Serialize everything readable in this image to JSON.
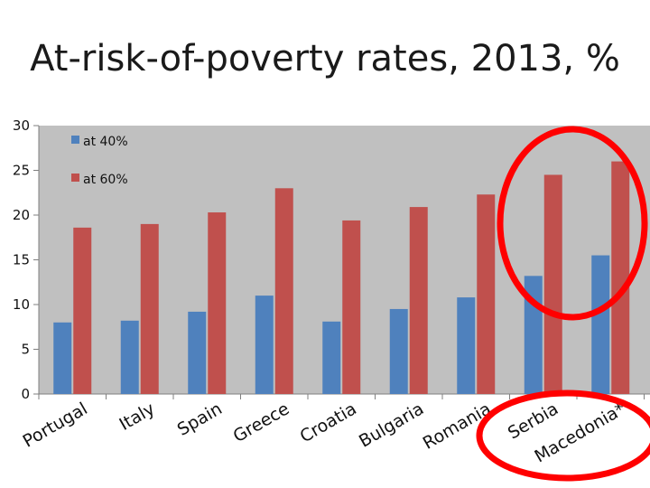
{
  "title": "At-risk-of-poverty rates, 2013, %",
  "chart_data": {
    "type": "bar",
    "title": "At-risk-of-poverty rates, 2013, %",
    "categories": [
      "Portugal",
      "Italy",
      "Spain",
      "Greece",
      "Croatia",
      "Bulgaria",
      "Romania",
      "Serbia",
      "Macedonia*"
    ],
    "series": [
      {
        "name": "at 40%",
        "color": "#4f81bd",
        "values": [
          8.0,
          8.2,
          9.2,
          11.0,
          8.1,
          9.5,
          10.8,
          13.2,
          15.5
        ]
      },
      {
        "name": "at 60%",
        "color": "#c0504d",
        "values": [
          18.6,
          19.0,
          20.3,
          23.0,
          19.4,
          20.9,
          22.3,
          24.5,
          26.0
        ]
      }
    ],
    "yticks": [
      0,
      5,
      10,
      15,
      20,
      25,
      30
    ],
    "ylim": [
      0,
      30
    ],
    "grid": false,
    "legend_position": "top-left",
    "plot_background": "#c0c0c0",
    "annotation": "red circles highlighting Serbia and Macedonia*"
  }
}
